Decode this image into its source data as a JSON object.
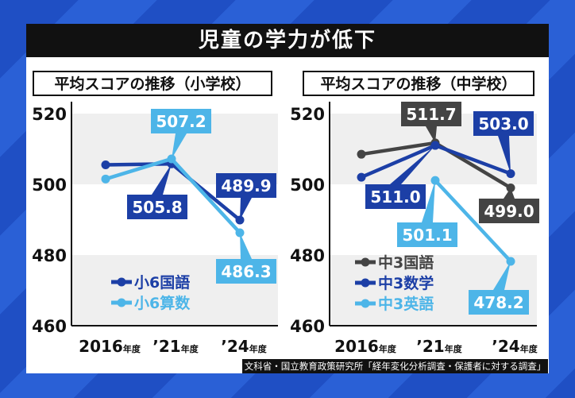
{
  "title": "児童の学力が低下",
  "source": "文科省・国立教育政策研究所「経年変化分析調査・保護者に対する調査」",
  "colors": {
    "dark_blue": "#1c3fa6",
    "light_blue": "#4db5e8",
    "gray": "#444444",
    "band": "#efefef"
  },
  "chart_data": [
    {
      "type": "line",
      "title": "平均スコアの推移（小学校）",
      "categories": [
        "2016",
        "’21",
        "’24"
      ],
      "category_suffix": "年度",
      "ylim": [
        460,
        520
      ],
      "yticks": [
        460,
        480,
        500,
        520
      ],
      "legend": "bottom-left",
      "series": [
        {
          "name": "小6国語",
          "color": "#1c3fa6",
          "values": [
            505.5,
            505.8,
            489.9
          ],
          "labels": [
            null,
            "505.8",
            "489.9"
          ]
        },
        {
          "name": "小6算数",
          "color": "#4db5e8",
          "values": [
            501.5,
            507.2,
            486.3
          ],
          "labels": [
            null,
            "507.2",
            "486.3"
          ]
        }
      ]
    },
    {
      "type": "line",
      "title": "平均スコアの推移（中学校）",
      "categories": [
        "2016",
        "’21",
        "’24"
      ],
      "category_suffix": "年度",
      "ylim": [
        460,
        520
      ],
      "yticks": [
        460,
        480,
        500,
        520
      ],
      "legend": "bottom-left",
      "series": [
        {
          "name": "中3国語",
          "color": "#444444",
          "values": [
            508.5,
            511.7,
            499.0
          ],
          "labels": [
            null,
            "511.7",
            "499.0"
          ]
        },
        {
          "name": "中3数学",
          "color": "#1c3fa6",
          "values": [
            502.0,
            511.0,
            503.0
          ],
          "labels": [
            null,
            "511.0",
            "503.0"
          ]
        },
        {
          "name": "中3英語",
          "color": "#4db5e8",
          "values": [
            null,
            501.1,
            478.2
          ],
          "labels": [
            null,
            "501.1",
            "478.2"
          ]
        }
      ]
    }
  ]
}
